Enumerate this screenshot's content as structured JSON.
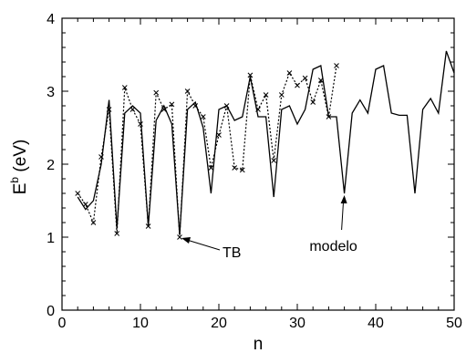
{
  "chart_data": {
    "type": "line",
    "xlabel": "n",
    "ylabel_main": "E",
    "ylabel_sup": "b",
    "ylabel_unit": " (eV)",
    "xlim": [
      0,
      50
    ],
    "ylim": [
      0,
      4
    ],
    "x_ticks": [
      0,
      10,
      20,
      30,
      40,
      50
    ],
    "y_ticks": [
      0,
      1,
      2,
      3,
      4
    ],
    "grid": false,
    "series": [
      {
        "name": "modelo",
        "style": "solid",
        "x": [
          2,
          3,
          4,
          5,
          6,
          7,
          8,
          9,
          10,
          11,
          12,
          13,
          14,
          15,
          16,
          17,
          18,
          19,
          20,
          21,
          22,
          23,
          24,
          25,
          26,
          27,
          28,
          29,
          30,
          31,
          32,
          33,
          34,
          35,
          36,
          37,
          38,
          39,
          40,
          41,
          42,
          43,
          44,
          45,
          46,
          47,
          48,
          49,
          50
        ],
        "y": [
          1.55,
          1.38,
          1.5,
          2.0,
          2.88,
          1.12,
          2.7,
          2.8,
          2.7,
          1.15,
          2.6,
          2.8,
          2.55,
          1.03,
          2.75,
          2.85,
          2.5,
          1.6,
          2.75,
          2.8,
          2.6,
          2.65,
          3.2,
          2.65,
          2.65,
          1.55,
          2.75,
          2.8,
          2.55,
          2.75,
          3.3,
          3.35,
          2.65,
          2.65,
          1.6,
          2.7,
          2.88,
          2.7,
          3.3,
          3.35,
          2.7,
          2.67,
          2.67,
          1.6,
          2.75,
          2.9,
          2.7,
          3.55,
          3.25
        ]
      },
      {
        "name": "TB",
        "style": "dotted",
        "marker": "x",
        "x": [
          2,
          3,
          4,
          5,
          6,
          7,
          8,
          9,
          10,
          11,
          12,
          13,
          14,
          15,
          16,
          17,
          18,
          19,
          20,
          21,
          22,
          23,
          24,
          25,
          26,
          27,
          28,
          29,
          30,
          31,
          32,
          33,
          34,
          35
        ],
        "y": [
          1.6,
          1.45,
          1.2,
          2.1,
          2.75,
          1.05,
          3.05,
          2.75,
          2.55,
          1.15,
          2.98,
          2.75,
          2.82,
          1.0,
          3.0,
          2.8,
          2.65,
          1.95,
          2.4,
          2.8,
          1.95,
          1.92,
          3.22,
          2.75,
          2.95,
          2.05,
          2.95,
          3.25,
          3.08,
          3.18,
          2.85,
          3.15,
          2.65,
          3.35
        ]
      }
    ],
    "annotations": [
      {
        "text": "TB",
        "x": 15,
        "y": 1.0
      },
      {
        "text": "modelo",
        "x": 36,
        "y": 1.6
      }
    ]
  }
}
